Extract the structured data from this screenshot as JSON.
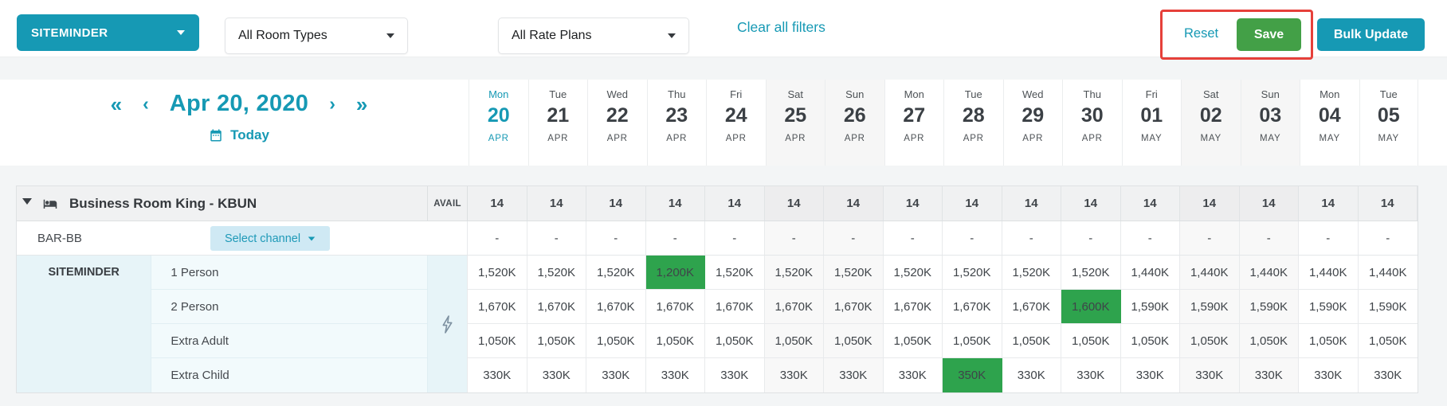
{
  "colors": {
    "teal": "#1699b4",
    "save_green": "#43a047",
    "cell_green": "#2ea34d",
    "highlight_red": "#e6403a"
  },
  "filter_bar": {
    "channel_dropdown": "SITEMINDER",
    "room_types_dropdown": "All Room Types",
    "rate_plans_dropdown": "All Rate Plans",
    "clear_all_filters": "Clear all filters",
    "reset": "Reset",
    "save": "Save",
    "bulk_update": "Bulk Update"
  },
  "date_nav": {
    "fast_prev": "«",
    "prev": "‹",
    "current_date": "Apr 20, 2020",
    "next": "›",
    "fast_next": "»",
    "today": "Today"
  },
  "calendar_days": [
    {
      "dow": "Mon",
      "day": "20",
      "month": "APR",
      "today": true,
      "weekend": false
    },
    {
      "dow": "Tue",
      "day": "21",
      "month": "APR",
      "today": false,
      "weekend": false
    },
    {
      "dow": "Wed",
      "day": "22",
      "month": "APR",
      "today": false,
      "weekend": false
    },
    {
      "dow": "Thu",
      "day": "23",
      "month": "APR",
      "today": false,
      "weekend": false
    },
    {
      "dow": "Fri",
      "day": "24",
      "month": "APR",
      "today": false,
      "weekend": false
    },
    {
      "dow": "Sat",
      "day": "25",
      "month": "APR",
      "today": false,
      "weekend": true
    },
    {
      "dow": "Sun",
      "day": "26",
      "month": "APR",
      "today": false,
      "weekend": true
    },
    {
      "dow": "Mon",
      "day": "27",
      "month": "APR",
      "today": false,
      "weekend": false
    },
    {
      "dow": "Tue",
      "day": "28",
      "month": "APR",
      "today": false,
      "weekend": false
    },
    {
      "dow": "Wed",
      "day": "29",
      "month": "APR",
      "today": false,
      "weekend": false
    },
    {
      "dow": "Thu",
      "day": "30",
      "month": "APR",
      "today": false,
      "weekend": false
    },
    {
      "dow": "Fri",
      "day": "01",
      "month": "MAY",
      "today": false,
      "weekend": false
    },
    {
      "dow": "Sat",
      "day": "02",
      "month": "MAY",
      "today": false,
      "weekend": true
    },
    {
      "dow": "Sun",
      "day": "03",
      "month": "MAY",
      "today": false,
      "weekend": true
    },
    {
      "dow": "Mon",
      "day": "04",
      "month": "MAY",
      "today": false,
      "weekend": false
    },
    {
      "dow": "Tue",
      "day": "05",
      "month": "MAY",
      "today": false,
      "weekend": false
    }
  ],
  "grid": {
    "room_name": "Business Room King - KBUN",
    "avail_label": "AVAIL",
    "availability": [
      "14",
      "14",
      "14",
      "14",
      "14",
      "14",
      "14",
      "14",
      "14",
      "14",
      "14",
      "14",
      "14",
      "14",
      "14",
      "14"
    ],
    "rate_plan_name": "BAR-BB",
    "select_channel_label": "Select channel",
    "rate_plan_values": [
      "-",
      "-",
      "-",
      "-",
      "-",
      "-",
      "-",
      "-",
      "-",
      "-",
      "-",
      "-",
      "-",
      "-",
      "-",
      "-"
    ],
    "channel_name": "SITEMINDER",
    "rate_rows": [
      {
        "label": "1 Person",
        "highlight_index": 3,
        "values": [
          "1,520K",
          "1,520K",
          "1,520K",
          "1,200K",
          "1,520K",
          "1,520K",
          "1,520K",
          "1,520K",
          "1,520K",
          "1,520K",
          "1,520K",
          "1,440K",
          "1,440K",
          "1,440K",
          "1,440K",
          "1,440K"
        ]
      },
      {
        "label": "2 Person",
        "highlight_index": 10,
        "values": [
          "1,670K",
          "1,670K",
          "1,670K",
          "1,670K",
          "1,670K",
          "1,670K",
          "1,670K",
          "1,670K",
          "1,670K",
          "1,670K",
          "1,600K",
          "1,590K",
          "1,590K",
          "1,590K",
          "1,590K",
          "1,590K"
        ]
      },
      {
        "label": "Extra Adult",
        "highlight_index": null,
        "values": [
          "1,050K",
          "1,050K",
          "1,050K",
          "1,050K",
          "1,050K",
          "1,050K",
          "1,050K",
          "1,050K",
          "1,050K",
          "1,050K",
          "1,050K",
          "1,050K",
          "1,050K",
          "1,050K",
          "1,050K",
          "1,050K"
        ]
      },
      {
        "label": "Extra Child",
        "highlight_index": 8,
        "values": [
          "330K",
          "330K",
          "330K",
          "330K",
          "330K",
          "330K",
          "330K",
          "330K",
          "350K",
          "330K",
          "330K",
          "330K",
          "330K",
          "330K",
          "330K",
          "330K"
        ]
      }
    ]
  }
}
